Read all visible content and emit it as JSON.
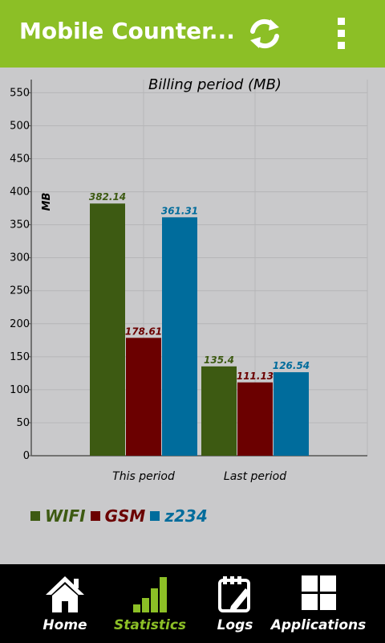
{
  "appbar": {
    "title": "Mobile Counter...",
    "refresh_icon": "refresh-icon",
    "menu_icon": "overflow-menu-icon",
    "color": "#8cbf26"
  },
  "chart_data": {
    "type": "bar",
    "title": "Billing period (MB)",
    "ylabel": "MB",
    "xlabel": "",
    "categories": [
      "This period",
      "Last period"
    ],
    "series": [
      {
        "name": "WIFI",
        "color": "#3d5a12",
        "values": [
          382.14,
          135.4
        ],
        "labels": [
          "382.14",
          "135.4"
        ]
      },
      {
        "name": "GSM",
        "color": "#6b0000",
        "values": [
          178.61,
          111.13
        ],
        "labels": [
          "178.61",
          "111.13"
        ]
      },
      {
        "name": "z234",
        "color": "#006c9c",
        "values": [
          361.31,
          126.54
        ],
        "labels": [
          "361.31",
          "126.54"
        ]
      }
    ],
    "ylim": [
      0,
      570
    ],
    "yticks": [
      "0",
      "50",
      "100",
      "150",
      "200",
      "250",
      "300",
      "350",
      "400",
      "450",
      "500",
      "550"
    ],
    "grid": true,
    "legend": "bottom-left"
  },
  "bottom_nav": {
    "items": [
      {
        "label": "Home",
        "icon": "home-icon",
        "active": false
      },
      {
        "label": "Statistics",
        "icon": "bar-chart-icon",
        "active": true
      },
      {
        "label": "Logs",
        "icon": "log-notes-icon",
        "active": false
      },
      {
        "label": "Applications",
        "icon": "applications-grid-icon",
        "active": false
      }
    ]
  }
}
